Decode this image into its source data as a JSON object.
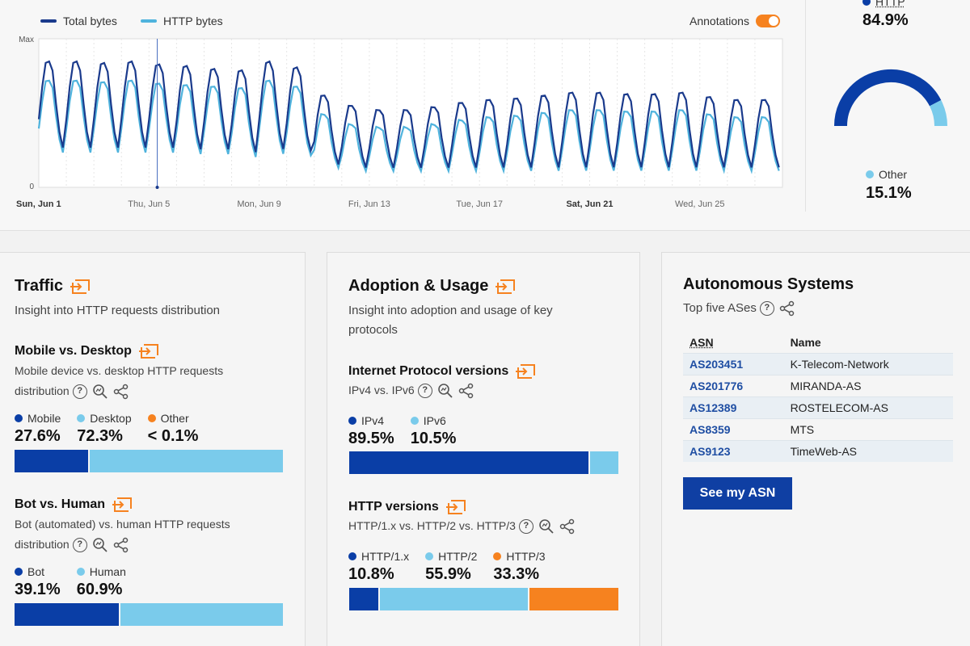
{
  "chart": {
    "legend": [
      {
        "label": "Total bytes",
        "color": "#1a3a8c"
      },
      {
        "label": "HTTP bytes",
        "color": "#4fb3dd"
      }
    ],
    "annotations_label": "Annotations",
    "annotations_on": true,
    "y_max_label": "Max",
    "y_zero_label": "0",
    "x_ticks": [
      "Sun, Jun 1",
      "Thu, Jun 5",
      "Mon, Jun 9",
      "Fri, Jun 13",
      "Tue, Jun 17",
      "Sat, Jun 21",
      "Wed, Jun 25"
    ],
    "x_ticks_bold": [
      "Sun, Jun 1",
      "Sat, Jun 21"
    ]
  },
  "chart_data": {
    "type": "line",
    "x_range": [
      "Jun 1",
      "Jun 27"
    ],
    "ylim": [
      "0",
      "Max"
    ],
    "grid": true,
    "legend_position": "top-left",
    "series": [
      {
        "name": "Total bytes",
        "color": "#1a3a8c",
        "daily_peaks": [
          0.88,
          0.88,
          0.87,
          0.88,
          0.86,
          0.85,
          0.83,
          0.82,
          0.88,
          0.84,
          0.65,
          0.58,
          0.55,
          0.55,
          0.57,
          0.6,
          0.62,
          0.63,
          0.65,
          0.67,
          0.67,
          0.66,
          0.66,
          0.67,
          0.64,
          0.62,
          0.62
        ],
        "daily_troughs": [
          0.25,
          0.25,
          0.25,
          0.25,
          0.25,
          0.24,
          0.24,
          0.22,
          0.24,
          0.23,
          0.14,
          0.12,
          0.12,
          0.12,
          0.12,
          0.12,
          0.12,
          0.12,
          0.12,
          0.12,
          0.12,
          0.12,
          0.12,
          0.12,
          0.12,
          0.12,
          0.12
        ]
      },
      {
        "name": "HTTP bytes",
        "color": "#4fb3dd",
        "daily_peaks": [
          0.75,
          0.75,
          0.74,
          0.75,
          0.73,
          0.72,
          0.71,
          0.7,
          0.75,
          0.71,
          0.52,
          0.45,
          0.43,
          0.43,
          0.45,
          0.48,
          0.5,
          0.51,
          0.53,
          0.55,
          0.55,
          0.54,
          0.54,
          0.55,
          0.52,
          0.5,
          0.5
        ],
        "daily_troughs": [
          0.22,
          0.22,
          0.22,
          0.22,
          0.22,
          0.21,
          0.21,
          0.19,
          0.21,
          0.2,
          0.12,
          0.1,
          0.1,
          0.1,
          0.1,
          0.1,
          0.1,
          0.1,
          0.1,
          0.1,
          0.1,
          0.1,
          0.1,
          0.1,
          0.1,
          0.1,
          0.1
        ]
      }
    ]
  },
  "gauge": {
    "http_label": "HTTP",
    "http_value": "84.9%",
    "http_fraction": 0.849,
    "other_label": "Other",
    "other_value": "15.1%",
    "colors": {
      "http": "#0a3ea6",
      "other": "#7acbeb"
    }
  },
  "traffic": {
    "title": "Traffic",
    "subtitle": "Insight into HTTP requests distribution",
    "mobile_desktop": {
      "title": "Mobile vs. Desktop",
      "desc_line1": "Mobile device vs. desktop HTTP requests",
      "desc_line2": "distribution",
      "items": [
        {
          "label": "Mobile",
          "value": "27.6%",
          "pct": 27.6,
          "color": "#0a3ea6"
        },
        {
          "label": "Desktop",
          "value": "72.3%",
          "pct": 72.3,
          "color": "#7acbeb"
        },
        {
          "label": "Other",
          "value": "< 0.1%",
          "pct": 0.1,
          "color": "#f6821f"
        }
      ]
    },
    "bot_human": {
      "title": "Bot vs. Human",
      "desc_line1": "Bot (automated) vs. human HTTP requests",
      "desc_line2": "distribution",
      "items": [
        {
          "label": "Bot",
          "value": "39.1%",
          "pct": 39.1,
          "color": "#0a3ea6"
        },
        {
          "label": "Human",
          "value": "60.9%",
          "pct": 60.9,
          "color": "#7acbeb"
        }
      ]
    }
  },
  "adoption": {
    "title": "Adoption & Usage",
    "subtitle_line1": "Insight into adoption and usage of key",
    "subtitle_line2": "protocols",
    "ip_versions": {
      "title": "Internet Protocol versions",
      "desc": "IPv4 vs. IPv6",
      "items": [
        {
          "label": "IPv4",
          "value": "89.5%",
          "pct": 89.5,
          "color": "#0a3ea6"
        },
        {
          "label": "IPv6",
          "value": "10.5%",
          "pct": 10.5,
          "color": "#7acbeb"
        }
      ]
    },
    "http_versions": {
      "title": "HTTP versions",
      "desc": "HTTP/1.x vs. HTTP/2 vs. HTTP/3",
      "items": [
        {
          "label": "HTTP/1.x",
          "value": "10.8%",
          "pct": 10.8,
          "color": "#0a3ea6"
        },
        {
          "label": "HTTP/2",
          "value": "55.9%",
          "pct": 55.9,
          "color": "#7acbeb"
        },
        {
          "label": "HTTP/3",
          "value": "33.3%",
          "pct": 33.3,
          "color": "#f6821f"
        }
      ]
    }
  },
  "asn": {
    "title": "Autonomous Systems",
    "subtitle": "Top five ASes",
    "col_asn": "ASN",
    "col_name": "Name",
    "rows": [
      {
        "asn": "AS203451",
        "name": "K-Telecom-Network"
      },
      {
        "asn": "AS201776",
        "name": "MIRANDA-AS"
      },
      {
        "asn": "AS12389",
        "name": "ROSTELECOM-AS"
      },
      {
        "asn": "AS8359",
        "name": "MTS"
      },
      {
        "asn": "AS9123",
        "name": "TimeWeb-AS"
      }
    ],
    "button": "See my ASN"
  }
}
